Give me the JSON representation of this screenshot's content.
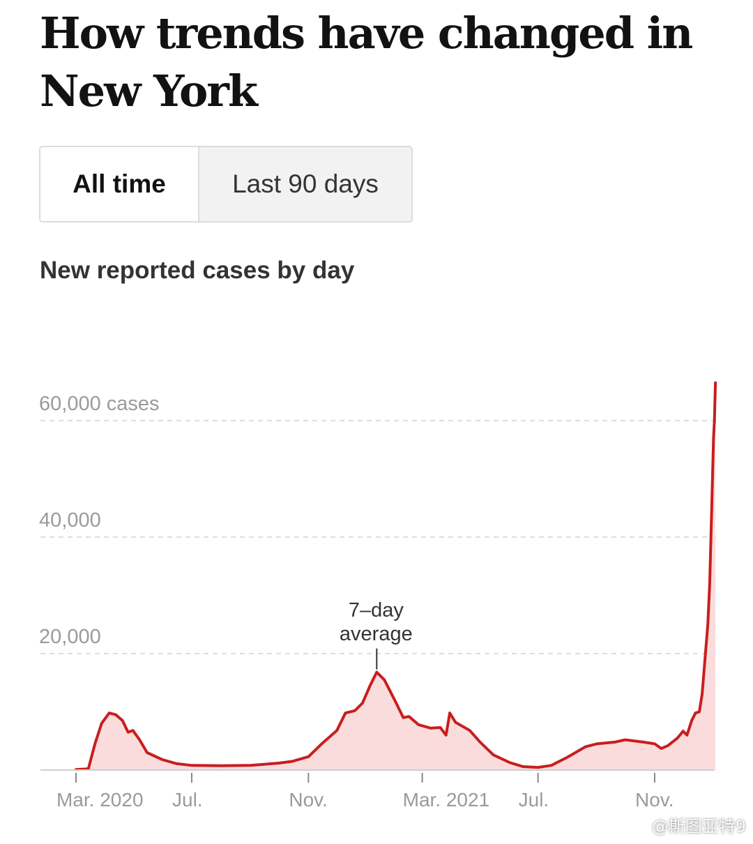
{
  "page": {
    "headline": "How trends have changed in New York",
    "toggle": {
      "options": [
        "All time",
        "Last 90 days"
      ],
      "selected": "All time"
    },
    "watermark": "@斯图亚特9"
  },
  "chart_data": {
    "type": "area",
    "title": "New reported cases by day",
    "xlabel": "",
    "ylabel": "",
    "ylim": [
      0,
      60000
    ],
    "y_ticks": [
      {
        "value": 20000,
        "label": "20,000"
      },
      {
        "value": 40000,
        "label": "40,000"
      },
      {
        "value": 60000,
        "label": "60,000 cases"
      }
    ],
    "x_ticks": [
      {
        "date": "2020-03-01",
        "label": "Mar. 2020"
      },
      {
        "date": "2020-07-01",
        "label": "Jul."
      },
      {
        "date": "2020-11-01",
        "label": "Nov."
      },
      {
        "date": "2021-03-01",
        "label": "Mar. 2021"
      },
      {
        "date": "2021-07-01",
        "label": "Jul."
      },
      {
        "date": "2021-11-01",
        "label": "Nov."
      }
    ],
    "grid": true,
    "series": [
      {
        "name": "7-day average",
        "color": "#c81e1e",
        "fill": "#fadcdc",
        "points": [
          [
            "2020-03-01",
            100
          ],
          [
            "2020-03-14",
            200
          ],
          [
            "2020-03-21",
            4500
          ],
          [
            "2020-03-28",
            8000
          ],
          [
            "2020-04-05",
            9800
          ],
          [
            "2020-04-12",
            9500
          ],
          [
            "2020-04-19",
            8500
          ],
          [
            "2020-04-25",
            6500
          ],
          [
            "2020-04-30",
            6800
          ],
          [
            "2020-05-07",
            5200
          ],
          [
            "2020-05-15",
            3000
          ],
          [
            "2020-05-31",
            1800
          ],
          [
            "2020-06-15",
            1100
          ],
          [
            "2020-07-01",
            800
          ],
          [
            "2020-08-01",
            750
          ],
          [
            "2020-09-01",
            800
          ],
          [
            "2020-10-01",
            1200
          ],
          [
            "2020-10-15",
            1500
          ],
          [
            "2020-11-01",
            2300
          ],
          [
            "2020-11-15",
            4500
          ],
          [
            "2020-12-01",
            6800
          ],
          [
            "2020-12-10",
            9800
          ],
          [
            "2020-12-20",
            10200
          ],
          [
            "2020-12-28",
            11500
          ],
          [
            "2021-01-05",
            14500
          ],
          [
            "2021-01-12",
            16800
          ],
          [
            "2021-01-20",
            15500
          ],
          [
            "2021-01-31",
            12000
          ],
          [
            "2021-02-09",
            9000
          ],
          [
            "2021-02-15",
            9200
          ],
          [
            "2021-02-25",
            7800
          ],
          [
            "2021-03-10",
            7200
          ],
          [
            "2021-03-20",
            7300
          ],
          [
            "2021-03-26",
            6000
          ],
          [
            "2021-03-30",
            9800
          ],
          [
            "2021-04-05",
            8200
          ],
          [
            "2021-04-20",
            6800
          ],
          [
            "2021-05-01",
            4800
          ],
          [
            "2021-05-15",
            2600
          ],
          [
            "2021-06-01",
            1300
          ],
          [
            "2021-06-15",
            600
          ],
          [
            "2021-07-01",
            450
          ],
          [
            "2021-07-15",
            800
          ],
          [
            "2021-08-01",
            2200
          ],
          [
            "2021-08-20",
            4000
          ],
          [
            "2021-09-01",
            4500
          ],
          [
            "2021-09-20",
            4800
          ],
          [
            "2021-10-01",
            5200
          ],
          [
            "2021-10-20",
            4800
          ],
          [
            "2021-11-01",
            4500
          ],
          [
            "2021-11-08",
            3700
          ],
          [
            "2021-11-15",
            4200
          ],
          [
            "2021-11-25",
            5500
          ],
          [
            "2021-12-01",
            6700
          ],
          [
            "2021-12-05",
            6000
          ],
          [
            "2021-12-10",
            8500
          ],
          [
            "2021-12-14",
            9800
          ],
          [
            "2021-12-18",
            10000
          ],
          [
            "2021-12-21",
            13000
          ],
          [
            "2021-12-24",
            19000
          ],
          [
            "2021-12-27",
            25000
          ],
          [
            "2021-12-29",
            32000
          ],
          [
            "2021-12-31",
            44000
          ],
          [
            "2022-01-02",
            57000
          ],
          [
            "2022-01-03",
            60000
          ],
          [
            "2022-01-04",
            66500
          ]
        ]
      }
    ],
    "annotations": [
      {
        "text_lines": [
          "7–day",
          "average"
        ],
        "date": "2021-01-12",
        "value": 16800
      }
    ]
  }
}
